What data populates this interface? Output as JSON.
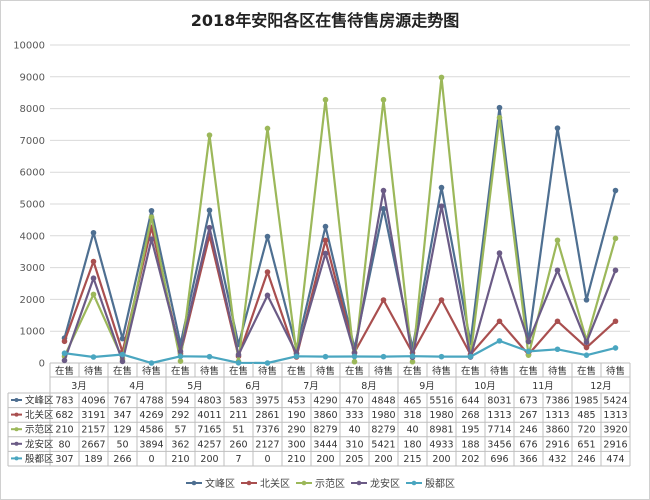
{
  "chart_data": {
    "type": "line",
    "title": "2018年安阳各区在售待售房源走势图",
    "ylim": [
      0,
      10000
    ],
    "y_ticks": [
      0,
      1000,
      2000,
      3000,
      4000,
      5000,
      6000,
      7000,
      8000,
      9000,
      10000
    ],
    "months": [
      "3月",
      "4月",
      "5月",
      "6月",
      "7月",
      "8月",
      "9月",
      "10月",
      "11月",
      "12月"
    ],
    "sub_categories": [
      "在售",
      "待售"
    ],
    "x": [
      "在售",
      "待售",
      "在售",
      "待售",
      "在售",
      "待售",
      "在售",
      "待售",
      "在售",
      "待售",
      "在售",
      "待售",
      "在售",
      "待售",
      "在售",
      "待售",
      "在售",
      "待售",
      "在售",
      "待售"
    ],
    "legend_position": "bottom",
    "grid": true,
    "series": [
      {
        "name": "文峰区",
        "color": "#4e6f91",
        "values": [
          783,
          4096,
          767,
          4788,
          594,
          4803,
          583,
          3975,
          453,
          4290,
          470,
          4848,
          465,
          5516,
          644,
          8031,
          673,
          7386,
          1985,
          5424
        ]
      },
      {
        "name": "北关区",
        "color": "#a94f4f",
        "values": [
          682,
          3191,
          347,
          4269,
          292,
          4011,
          211,
          2861,
          190,
          3860,
          333,
          1980,
          318,
          1980,
          268,
          1313,
          267,
          1313,
          485,
          1313
        ]
      },
      {
        "name": "示范区",
        "color": "#9cb85a",
        "values": [
          210,
          2157,
          129,
          4586,
          57,
          7165,
          51,
          7376,
          290,
          8279,
          40,
          8279,
          40,
          8981,
          195,
          7714,
          246,
          3860,
          720,
          3920
        ]
      },
      {
        "name": "龙安区",
        "color": "#6b5b86",
        "values": [
          80,
          2667,
          50,
          3894,
          362,
          4257,
          260,
          2127,
          300,
          3444,
          310,
          5421,
          180,
          4933,
          188,
          3456,
          676,
          2916,
          651,
          2916
        ]
      },
      {
        "name": "殷都区",
        "color": "#4aa6c0",
        "values": [
          307,
          189,
          266,
          0,
          210,
          200,
          7,
          0,
          210,
          200,
          205,
          200,
          215,
          200,
          202,
          696,
          366,
          432,
          246,
          474
        ]
      }
    ]
  }
}
